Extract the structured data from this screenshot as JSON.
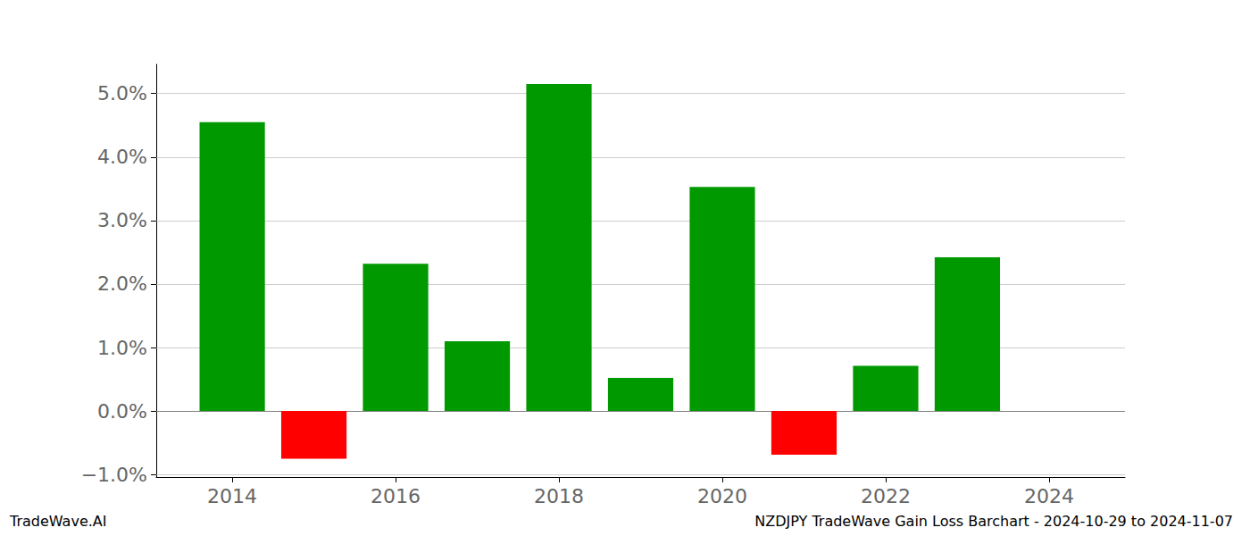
{
  "chart_data": {
    "type": "bar",
    "title": "NZDJPY TradeWave Gain Loss Barchart - 2024-10-29 to 2024-11-07",
    "annotations": [
      "TradeWave.AI"
    ],
    "x": [
      2014,
      2015,
      2016,
      2017,
      2018,
      2019,
      2020,
      2021,
      2022,
      2023
    ],
    "values": [
      4.55,
      -0.75,
      2.32,
      1.1,
      5.15,
      0.52,
      3.53,
      -0.69,
      0.71,
      2.42
    ],
    "colors": [
      "#009900",
      "#ff0000",
      "#009900",
      "#009900",
      "#009900",
      "#009900",
      "#009900",
      "#ff0000",
      "#009900",
      "#009900"
    ],
    "xlim": [
      2013.07,
      2024.93
    ],
    "xticks": [
      2014,
      2016,
      2018,
      2020,
      2022,
      2024
    ],
    "ylim": [
      -1.04,
      5.46
    ],
    "yticks": [
      {
        "value": -1,
        "label": "−1.0%"
      },
      {
        "value": 0,
        "label": "0.0%"
      },
      {
        "value": 1,
        "label": "1.0%"
      },
      {
        "value": 2,
        "label": "2.0%"
      },
      {
        "value": 3,
        "label": "3.0%"
      },
      {
        "value": 4,
        "label": "4.0%"
      },
      {
        "value": 5,
        "label": "5.0%"
      }
    ],
    "grid": true
  }
}
